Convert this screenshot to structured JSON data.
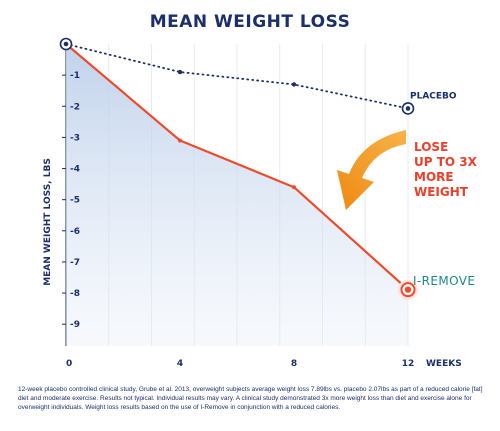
{
  "chart_data": {
    "type": "line",
    "title": "MEAN WEIGHT LOSS",
    "xlabel": "WEEKS",
    "ylabel": "MEAN WEIGHT LOSS, LBS",
    "x": [
      0,
      4,
      8,
      12
    ],
    "x_tick_labels": [
      "0",
      "4",
      "8",
      "12"
    ],
    "y_tick_labels": [
      "-1",
      "-2",
      "-3",
      "-4",
      "-5",
      "-6",
      "-7",
      "-8",
      "-9"
    ],
    "xlim": [
      0,
      12
    ],
    "ylim": [
      -9.7,
      0
    ],
    "series": [
      {
        "name": "PLACEBO",
        "values": [
          0,
          -0.9,
          -1.3,
          -2.07
        ],
        "color": "#1b2f6b",
        "style": "dotted"
      },
      {
        "name": "I-REMOVE",
        "values": [
          0,
          -3.1,
          -4.6,
          -7.89
        ],
        "color": "#ef4a2c",
        "style": "solid-area"
      }
    ],
    "callout": [
      "LOSE",
      "UP TO 3X",
      "MORE",
      "WEIGHT"
    ],
    "callout_color": "#ee3e2a",
    "arrow_color": "#f5a021",
    "brand_color": "#1a8b84",
    "grid": "vertical",
    "footnote": "12-week placebo controlled clinical study, Grube et al. 2013, overweight subjects average weight loss 7.89lbs vs. placebo 2.07lbs as part of a reduced calorie [fat] diet and moderate exercise. Results not typical. Individual results may vary. A clinical study demonstrated 3x more weight loss than diet and exercise alone for overweight individuals. Weight loss results based on the use of I-Remove in conjunction with a reduced calories."
  }
}
